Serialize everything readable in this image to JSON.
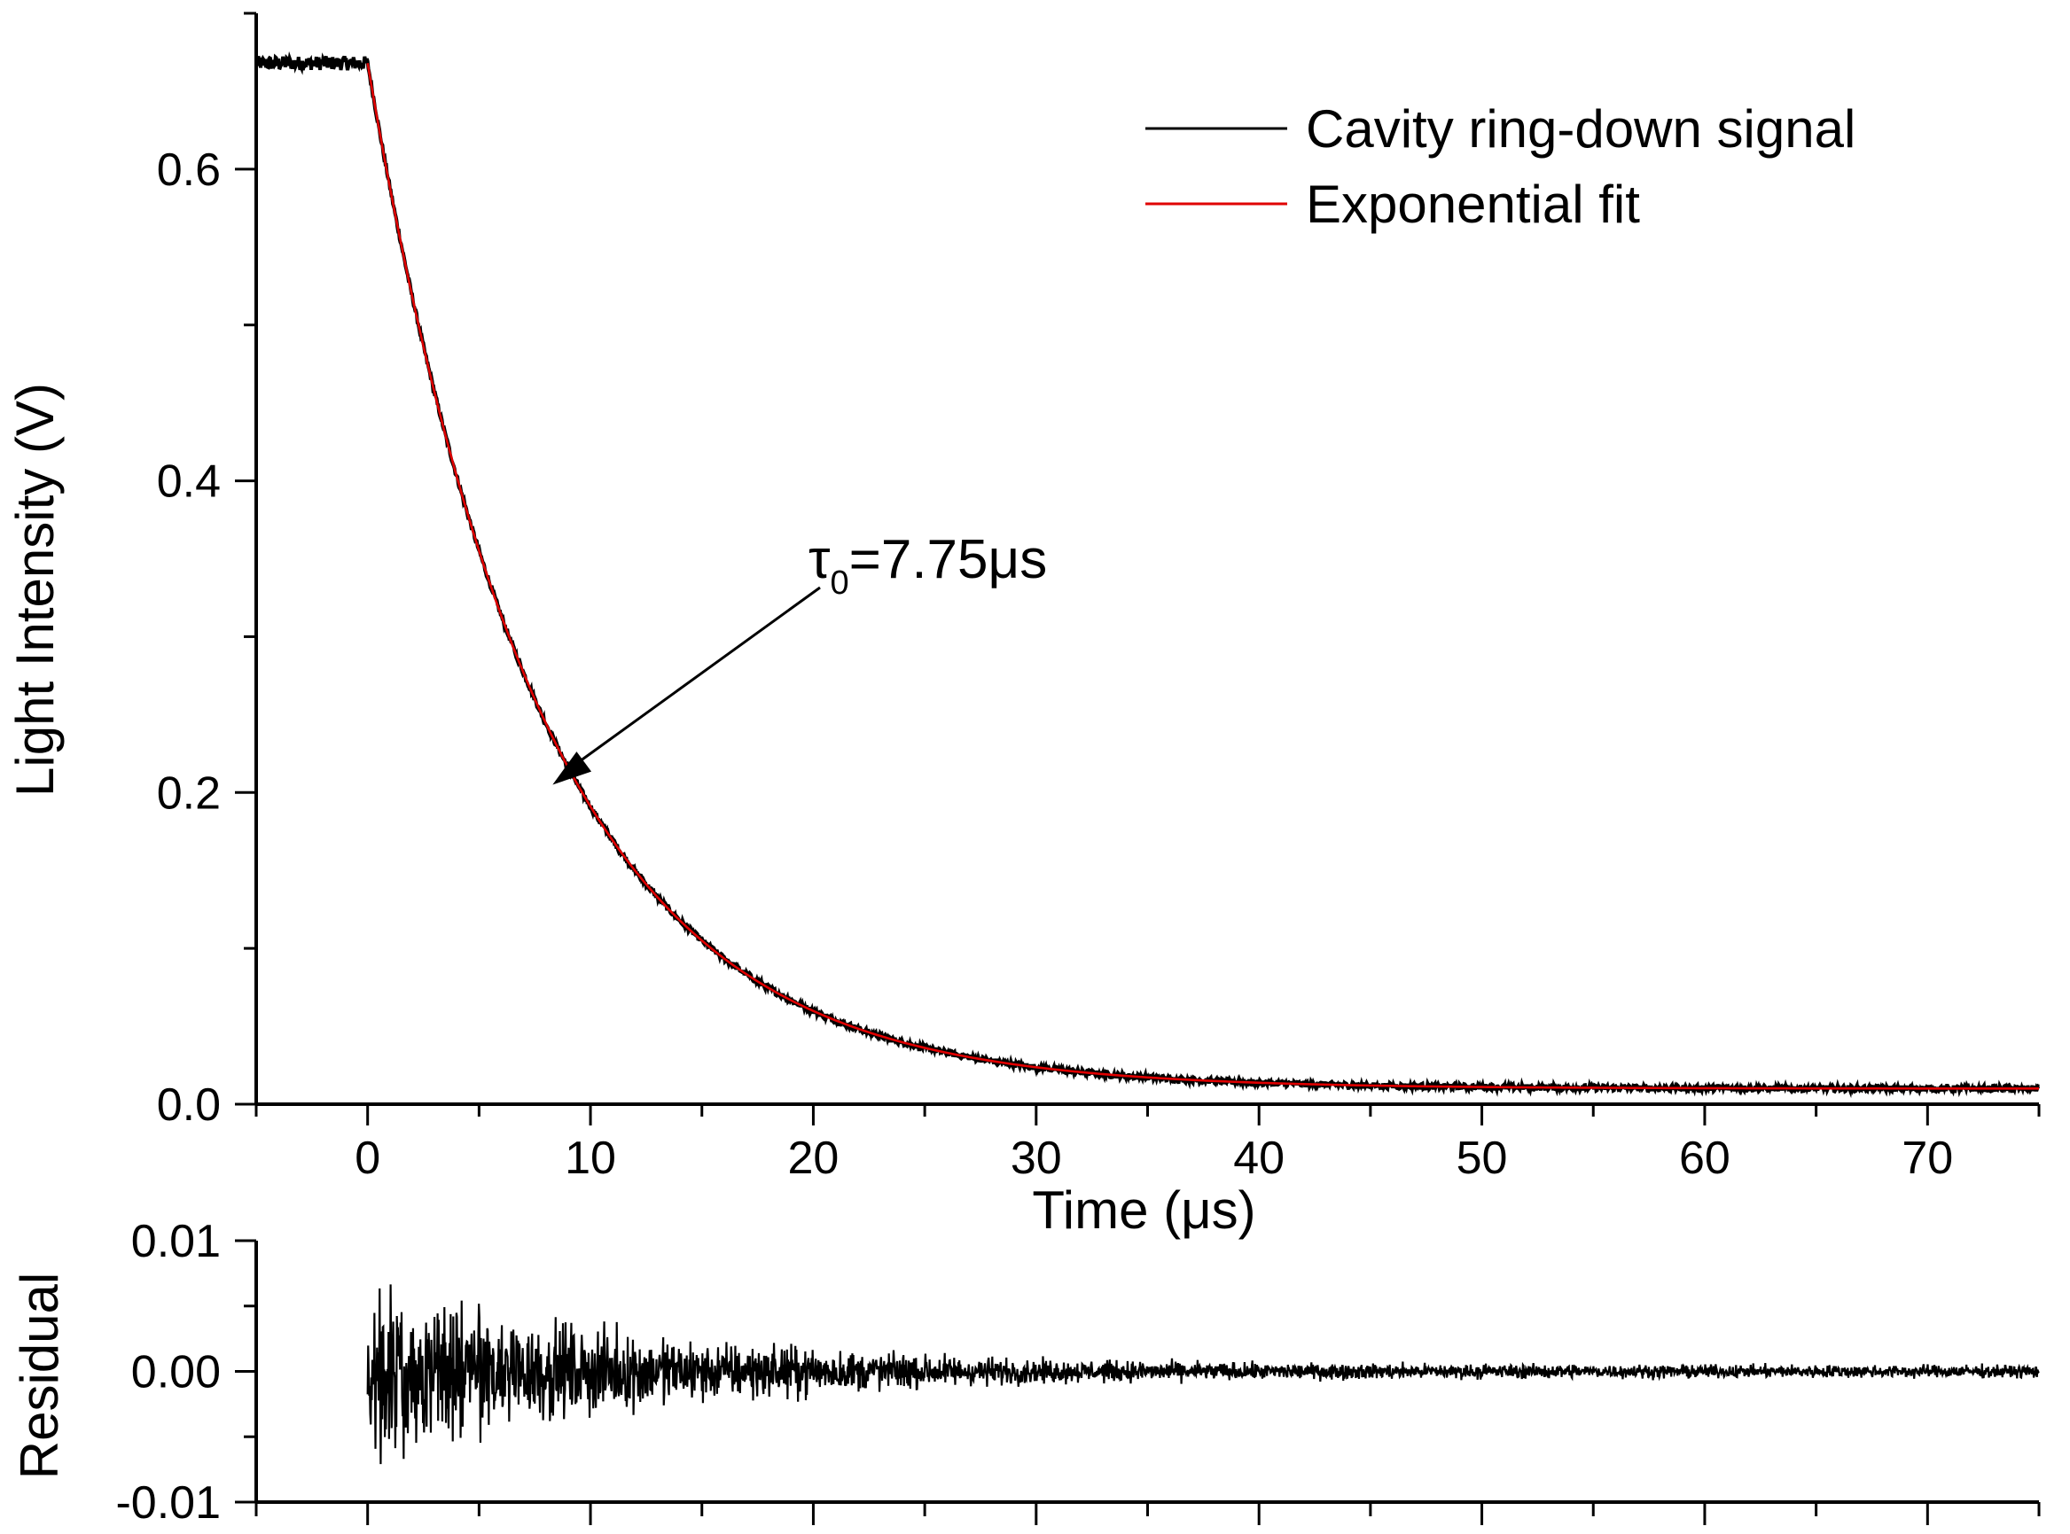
{
  "chart_data": [
    {
      "type": "line",
      "panel": "main",
      "title": "",
      "xlabel": "Time (μs)",
      "ylabel": "Light Intensity (V)",
      "xlim": [
        -5,
        75
      ],
      "ylim": [
        0,
        0.7
      ],
      "x_ticks": [
        0,
        10,
        20,
        30,
        40,
        50,
        60,
        70
      ],
      "x_tick_labels": [
        "0",
        "10",
        "20",
        "30",
        "40",
        "50",
        "60",
        "70"
      ],
      "y_ticks": [
        0.0,
        0.2,
        0.4,
        0.6
      ],
      "y_tick_labels": [
        "0.0",
        "0.2",
        "0.4",
        "0.6"
      ],
      "grid": false,
      "legend_position": "top-right",
      "series": [
        {
          "name": "Cavity ring-down signal",
          "color": "#000000",
          "model": {
            "plateau": 0.668,
            "t0": 0,
            "amplitude": 0.658,
            "tau": 7.75,
            "offset": 0.01
          },
          "x": [
            -5,
            -2.5,
            0,
            2,
            4,
            6,
            8,
            10,
            12,
            14,
            16,
            18,
            20,
            25,
            30,
            35,
            40,
            50,
            60,
            70,
            75
          ],
          "values": [
            0.668,
            0.668,
            0.668,
            0.548,
            0.406,
            0.31,
            0.215,
            0.18,
            0.142,
            0.111,
            0.09,
            0.074,
            0.06,
            0.036,
            0.023,
            0.016,
            0.013,
            0.0105,
            0.0101,
            0.01,
            0.01
          ]
        },
        {
          "name": "Exponential fit",
          "color": "#e00000",
          "model": {
            "amplitude": 0.658,
            "tau": 7.75,
            "offset": 0.01
          },
          "x": [
            0,
            2,
            4,
            6,
            8,
            10,
            12,
            14,
            16,
            18,
            20,
            25,
            30,
            35,
            40,
            50,
            60,
            70,
            75
          ],
          "values": [
            0.668,
            0.518,
            0.406,
            0.312,
            0.242,
            0.186,
            0.144,
            0.111,
            0.086,
            0.067,
            0.053,
            0.031,
            0.024,
            0.016,
            0.013,
            0.0105,
            0.0101,
            0.01,
            0.01
          ]
        }
      ],
      "annotations": [
        {
          "text_main": "τ",
          "text_sub": "0",
          "text_rest": "=7.75μs",
          "arrow_to": {
            "x": 8.3,
            "y": 0.205
          }
        }
      ]
    },
    {
      "type": "line",
      "panel": "residual",
      "title": "",
      "xlabel": "",
      "ylabel": "Residual",
      "xlim": [
        -5,
        75
      ],
      "ylim": [
        -0.01,
        0.01
      ],
      "x_ticks": [
        0,
        10,
        20,
        30,
        40,
        50,
        60,
        70
      ],
      "y_ticks": [
        0.01,
        0.0,
        -0.01
      ],
      "y_tick_labels": [
        "0.01",
        "0.00",
        "-0.01"
      ],
      "grid": false,
      "series": [
        {
          "name": "Residual",
          "color": "#000000",
          "x_range": [
            0,
            75
          ],
          "envelope_x": [
            0,
            5,
            10,
            15,
            20,
            25,
            30,
            40,
            50,
            60,
            75
          ],
          "envelope_amplitude": [
            0.0085,
            0.0065,
            0.0045,
            0.0032,
            0.0025,
            0.0018,
            0.0013,
            0.0009,
            0.0008,
            0.0007,
            0.0007
          ]
        }
      ]
    }
  ]
}
